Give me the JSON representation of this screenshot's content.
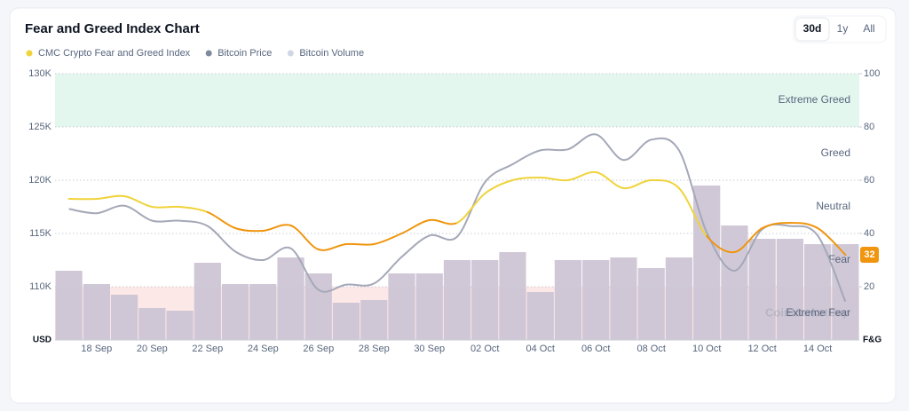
{
  "chart_data": {
    "type": "line",
    "title": "Fear and Greed Index Chart",
    "ranges": [
      "30d",
      "1y",
      "All"
    ],
    "active_range": 0,
    "categories": [
      null,
      "18 Sep",
      null,
      "20 Sep",
      null,
      "22 Sep",
      null,
      "24 Sep",
      null,
      "26 Sep",
      null,
      "28 Sep",
      null,
      "30 Sep",
      null,
      "02 Oct",
      null,
      "04 Oct",
      null,
      "06 Oct",
      null,
      "08 Oct",
      null,
      "10 Oct",
      null,
      "12 Oct",
      null,
      "14 Oct",
      null
    ],
    "series": [
      {
        "name": "CMC Crypto Fear and Greed Index",
        "color": "#f0d33a",
        "axis": "y2",
        "values": [
          53,
          53,
          54,
          50,
          50,
          48,
          42,
          41,
          43,
          34,
          36,
          36,
          40,
          45,
          44,
          55,
          60,
          61,
          60,
          63,
          57,
          60,
          57,
          39,
          33,
          42,
          44,
          42,
          32
        ]
      },
      {
        "name": "Bitcoin Price",
        "color": "#a4a8b8",
        "legend_color": "#808a9d",
        "axis": "y",
        "values": [
          117.3,
          116.9,
          117.6,
          116.2,
          116.2,
          115.7,
          113.3,
          112.5,
          113.6,
          109.7,
          110.2,
          110.3,
          112.8,
          114.8,
          114.7,
          119.8,
          121.5,
          122.8,
          122.9,
          124.3,
          121.9,
          123.8,
          122.8,
          115.1,
          111.5,
          115.4,
          115.7,
          114.8,
          108.6
        ]
      },
      {
        "name": "Bitcoin Volume",
        "color": "#cdc5d5",
        "legend_color": "#cfd6e4",
        "axis": "volume",
        "values": [
          26,
          21,
          17,
          12,
          11,
          29,
          21,
          21,
          31,
          25,
          14,
          15,
          25,
          25,
          30,
          30,
          33,
          18,
          30,
          30,
          31,
          27,
          31,
          58,
          43,
          38,
          38,
          36,
          36
        ]
      }
    ],
    "line_bands": [
      {
        "from": 0,
        "to": 46,
        "color": "#f0950e"
      },
      {
        "from": 46,
        "to": 62,
        "color": "#f0d33a"
      },
      {
        "from": 62,
        "to": 100,
        "color": "#93d12f"
      }
    ],
    "zones": [
      {
        "name": "Extreme Fear",
        "from": 0,
        "to": 20,
        "fill": "#fde8e8"
      },
      {
        "name": "Fear",
        "from": 20,
        "to": 40
      },
      {
        "name": "Neutral",
        "from": 40,
        "to": 60
      },
      {
        "name": "Greed",
        "from": 60,
        "to": 80
      },
      {
        "name": "Extreme Greed",
        "from": 80,
        "to": 100,
        "fill": "#e3f7ee"
      }
    ],
    "ylabel": "USD",
    "y2label": "F&G",
    "ylim": [
      105,
      130
    ],
    "yticks": [
      {
        "value": 110,
        "label": "110K"
      },
      {
        "value": 115,
        "label": "115K"
      },
      {
        "value": 120,
        "label": "120K"
      },
      {
        "value": 125,
        "label": "125K"
      },
      {
        "value": 130,
        "label": "130K"
      }
    ],
    "y2lim": [
      0,
      100
    ],
    "y2ticks": [
      20,
      40,
      60,
      80,
      100
    ],
    "volume_lim": [
      0,
      100
    ],
    "watermark": "CoinMarketCap",
    "grid": true
  }
}
